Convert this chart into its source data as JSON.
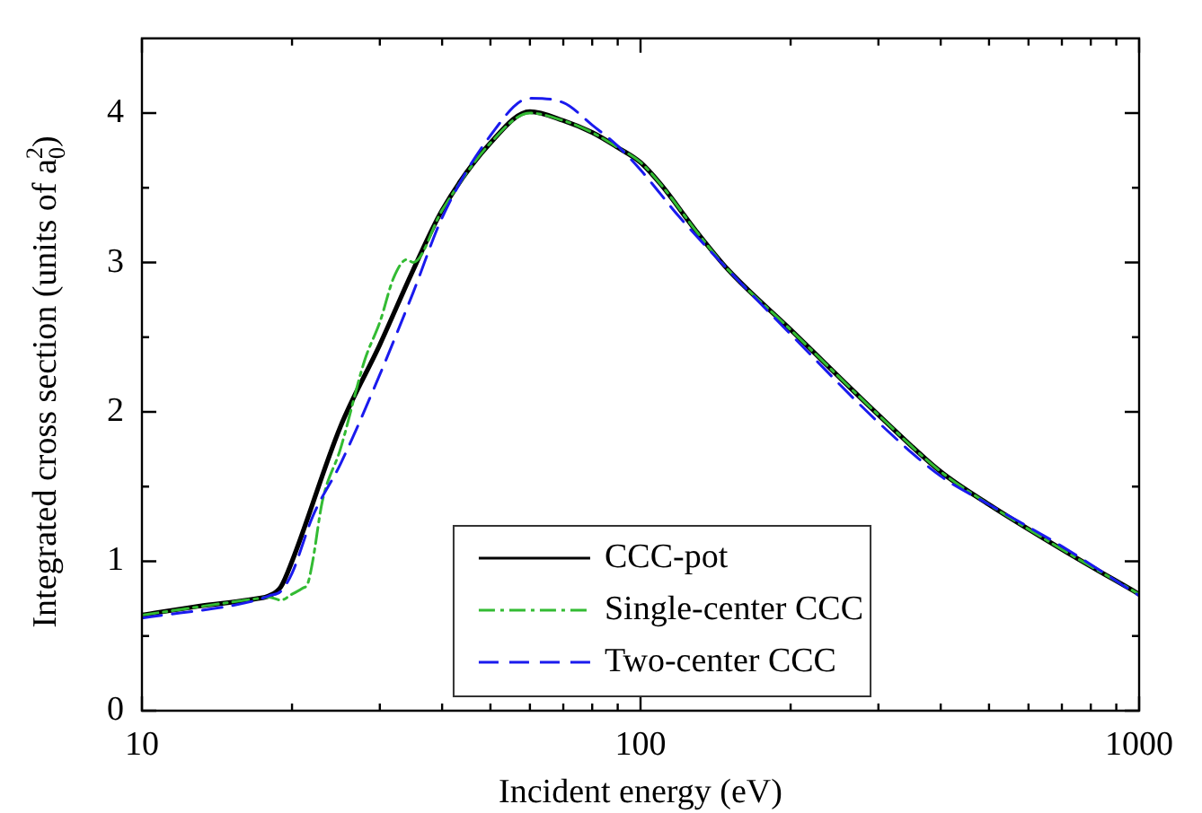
{
  "chart_data": {
    "type": "line",
    "xlabel": "Incident energy (eV)",
    "ylabel": "Integrated cross section (units of a$_{0}$$^{2}$)",
    "log": "x",
    "xlim": [
      10,
      1000
    ],
    "ylim": [
      0,
      4.5
    ],
    "xticks": [
      10,
      {
        "value": 20,
        "label": null
      },
      {
        "value": 30,
        "label": null
      },
      {
        "value": 40,
        "label": null
      },
      {
        "value": 50,
        "label": null
      },
      {
        "value": 60,
        "label": null
      },
      {
        "value": 70,
        "label": null
      },
      {
        "value": 80,
        "label": null
      },
      {
        "value": 90,
        "label": null
      },
      100,
      {
        "value": 200,
        "label": null
      },
      {
        "value": 300,
        "label": null
      },
      {
        "value": 400,
        "label": null
      },
      {
        "value": 500,
        "label": null
      },
      {
        "value": 600,
        "label": null
      },
      {
        "value": 700,
        "label": null
      },
      {
        "value": 800,
        "label": null
      },
      {
        "value": 900,
        "label": null
      },
      1000
    ],
    "yticks": [
      0,
      {
        "value": 0.5,
        "label": null
      },
      1,
      {
        "value": 1.5,
        "label": null
      },
      2,
      {
        "value": 2.5,
        "label": null
      },
      3,
      {
        "value": 3.5,
        "label": null
      },
      4
    ],
    "legend": "bottom",
    "grid": false,
    "marker": "none",
    "series": [
      {
        "name": "CCC-pot",
        "color": "#000000",
        "line_style": "solid",
        "x": [
          10,
          13,
          17,
          18,
          19,
          20,
          25,
          30,
          35,
          40,
          50,
          60,
          70,
          80,
          90,
          100,
          110,
          130,
          150,
          200,
          300,
          400,
          500,
          700,
          1000
        ],
        "values": [
          0.64,
          0.7,
          0.75,
          0.77,
          0.83,
          1.0,
          1.9,
          2.45,
          2.95,
          3.35,
          3.8,
          4.01,
          3.95,
          3.87,
          3.77,
          3.67,
          3.52,
          3.2,
          2.95,
          2.55,
          1.98,
          1.6,
          1.38,
          1.08,
          0.78
        ]
      },
      {
        "name": "Single-center CCC",
        "color": "#33bb33",
        "line_style": "dashdot",
        "x": [
          10,
          17,
          18,
          19,
          20,
          21,
          21.5,
          22,
          23,
          25,
          28,
          30,
          32,
          34,
          35,
          40,
          50,
          60,
          70,
          80,
          90,
          100,
          110,
          130,
          150,
          200,
          300,
          400,
          500,
          700,
          1000
        ],
        "values": [
          0.64,
          0.75,
          0.76,
          0.74,
          0.78,
          0.82,
          0.85,
          1.0,
          1.4,
          1.75,
          2.35,
          2.6,
          2.9,
          3.02,
          3.0,
          3.35,
          3.8,
          4.0,
          3.95,
          3.87,
          3.77,
          3.67,
          3.52,
          3.2,
          2.95,
          2.55,
          1.98,
          1.6,
          1.38,
          1.08,
          0.78
        ]
      },
      {
        "name": "Two-center CCC",
        "color": "#1a1aee",
        "line_style": "dashed",
        "x": [
          10,
          17,
          18,
          19,
          20,
          22,
          25,
          30,
          35,
          40,
          50,
          60,
          70,
          80,
          90,
          100,
          120,
          150,
          200,
          300,
          400,
          500,
          700,
          1000
        ],
        "values": [
          0.62,
          0.74,
          0.77,
          0.8,
          0.92,
          1.3,
          1.65,
          2.25,
          2.8,
          3.3,
          3.85,
          4.1,
          4.07,
          3.92,
          3.78,
          3.62,
          3.3,
          2.95,
          2.52,
          1.93,
          1.57,
          1.38,
          1.1,
          0.77
        ]
      }
    ]
  }
}
